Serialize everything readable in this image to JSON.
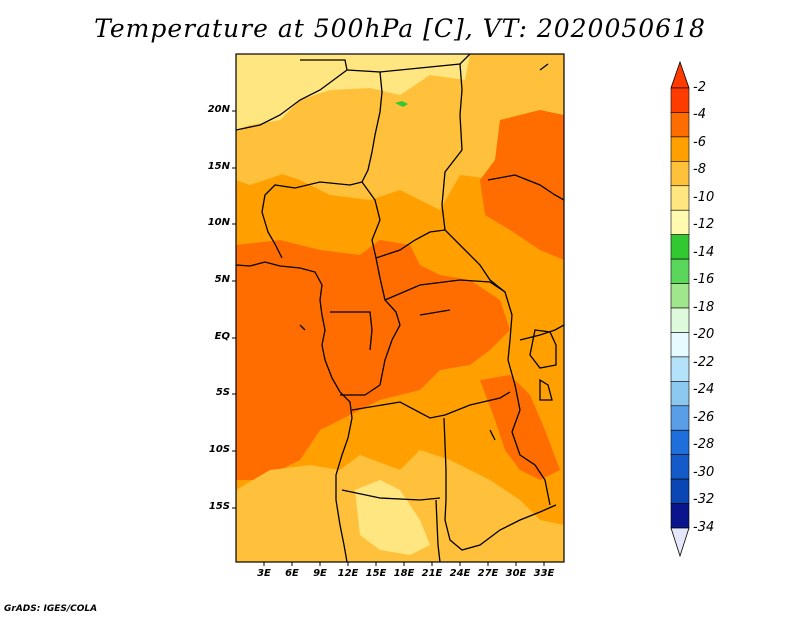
{
  "title": "Temperature at 500hPa [C], VT: 2020050618",
  "credit": "GrADS: IGES/COLA",
  "map": {
    "lat_labels": [
      "20N",
      "15N",
      "10N",
      "5N",
      "EQ",
      "5S",
      "10S",
      "15S"
    ],
    "lon_labels": [
      "3E",
      "6E",
      "9E",
      "12E",
      "15E",
      "18E",
      "21E",
      "24E",
      "27E",
      "30E",
      "33E"
    ],
    "regions": {
      "sahara_north": "#ffe680",
      "northern_band": "#ffc13c",
      "central_band": "#ffa000",
      "congo_west": "#ff6c00",
      "east_africa_high": "#ff6c00",
      "southern_band": "#ffc13c",
      "southern_pocket": "#ffe680",
      "green_spot": "#32c832"
    }
  },
  "colorbar": {
    "labels": [
      "-2",
      "-4",
      "-6",
      "-8",
      "-10",
      "-12",
      "-14",
      "-16",
      "-18",
      "-20",
      "-22",
      "-24",
      "-26",
      "-28",
      "-30",
      "-32",
      "-34"
    ],
    "colors": [
      "#ff3c00",
      "#ff6c00",
      "#ffa000",
      "#ffc13c",
      "#ffe680",
      "#fffab0",
      "#32c832",
      "#5ad75a",
      "#a0e68c",
      "#ddfadd",
      "#e6fbff",
      "#b4e2fa",
      "#8cc8f0",
      "#5a9ee8",
      "#1e6edc",
      "#145ac8",
      "#0a46b4",
      "#0a148c"
    ],
    "top_arrow_color": "#ff3c00",
    "bottom_arrow_color": "#e6e6fa"
  }
}
